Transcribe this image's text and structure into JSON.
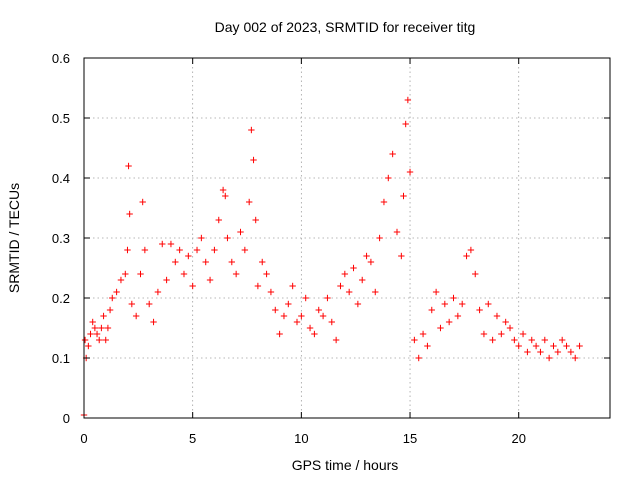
{
  "chart_data": {
    "type": "scatter",
    "title": "Day 002 of 2023, SRMTID for receiver titg",
    "xlabel": "GPS time / hours",
    "ylabel": "SRMTID / TECUs",
    "xlim": [
      0,
      24.2
    ],
    "ylim": [
      0,
      0.6
    ],
    "x_ticks": [
      0,
      5,
      10,
      15,
      20
    ],
    "x_tick_labels": [
      "0",
      "5",
      "10",
      "15",
      "20"
    ],
    "y_ticks": [
      0,
      0.1,
      0.2,
      0.3,
      0.4,
      0.5,
      0.6
    ],
    "y_tick_labels": [
      "0",
      "0.1",
      "0.2",
      "0.3",
      "0.4",
      "0.5",
      "0.6"
    ],
    "grid": true,
    "marker": "+",
    "series": [
      {
        "name": "SRMTID",
        "color": "#ff0000",
        "x": [
          0.0,
          0.05,
          0.1,
          0.2,
          0.3,
          0.4,
          0.5,
          0.6,
          0.7,
          0.8,
          0.9,
          1.0,
          1.1,
          1.2,
          1.3,
          1.5,
          1.7,
          1.9,
          2.0,
          2.05,
          2.1,
          2.2,
          2.4,
          2.6,
          2.7,
          2.8,
          3.0,
          3.2,
          3.4,
          3.6,
          3.8,
          4.0,
          4.2,
          4.4,
          4.6,
          4.8,
          5.0,
          5.2,
          5.4,
          5.6,
          5.8,
          6.0,
          6.2,
          6.4,
          6.5,
          6.6,
          6.8,
          7.0,
          7.2,
          7.4,
          7.6,
          7.7,
          7.8,
          7.9,
          8.0,
          8.2,
          8.4,
          8.6,
          8.8,
          9.0,
          9.2,
          9.4,
          9.6,
          9.8,
          10.0,
          10.2,
          10.4,
          10.6,
          10.8,
          11.0,
          11.2,
          11.4,
          11.6,
          11.8,
          12.0,
          12.2,
          12.4,
          12.6,
          12.8,
          13.0,
          13.2,
          13.4,
          13.6,
          13.8,
          14.0,
          14.2,
          14.4,
          14.6,
          14.7,
          14.8,
          14.9,
          15.0,
          15.2,
          15.4,
          15.6,
          15.8,
          16.0,
          16.2,
          16.4,
          16.6,
          16.8,
          17.0,
          17.2,
          17.4,
          17.6,
          17.8,
          18.0,
          18.2,
          18.4,
          18.6,
          18.8,
          19.0,
          19.2,
          19.4,
          19.6,
          19.8,
          20.0,
          20.2,
          20.4,
          20.6,
          20.8,
          21.0,
          21.2,
          21.4,
          21.6,
          21.8,
          22.0,
          22.2,
          22.4,
          22.6,
          22.8
        ],
        "y": [
          0.005,
          0.13,
          0.1,
          0.12,
          0.14,
          0.16,
          0.15,
          0.14,
          0.13,
          0.15,
          0.17,
          0.13,
          0.15,
          0.18,
          0.2,
          0.21,
          0.23,
          0.24,
          0.28,
          0.42,
          0.34,
          0.19,
          0.17,
          0.24,
          0.36,
          0.28,
          0.19,
          0.16,
          0.21,
          0.29,
          0.23,
          0.29,
          0.26,
          0.28,
          0.24,
          0.27,
          0.22,
          0.28,
          0.3,
          0.26,
          0.23,
          0.28,
          0.33,
          0.38,
          0.37,
          0.3,
          0.26,
          0.24,
          0.31,
          0.28,
          0.36,
          0.48,
          0.43,
          0.33,
          0.22,
          0.26,
          0.24,
          0.21,
          0.18,
          0.14,
          0.17,
          0.19,
          0.22,
          0.16,
          0.17,
          0.2,
          0.15,
          0.14,
          0.18,
          0.17,
          0.2,
          0.16,
          0.13,
          0.22,
          0.24,
          0.21,
          0.25,
          0.19,
          0.23,
          0.27,
          0.26,
          0.21,
          0.3,
          0.36,
          0.4,
          0.44,
          0.31,
          0.27,
          0.37,
          0.49,
          0.53,
          0.41,
          0.13,
          0.1,
          0.14,
          0.12,
          0.18,
          0.21,
          0.15,
          0.19,
          0.16,
          0.2,
          0.17,
          0.19,
          0.27,
          0.28,
          0.24,
          0.18,
          0.14,
          0.19,
          0.13,
          0.17,
          0.14,
          0.16,
          0.15,
          0.13,
          0.12,
          0.14,
          0.11,
          0.13,
          0.12,
          0.11,
          0.13,
          0.1,
          0.12,
          0.11,
          0.13,
          0.12,
          0.11,
          0.1,
          0.12
        ]
      }
    ]
  }
}
